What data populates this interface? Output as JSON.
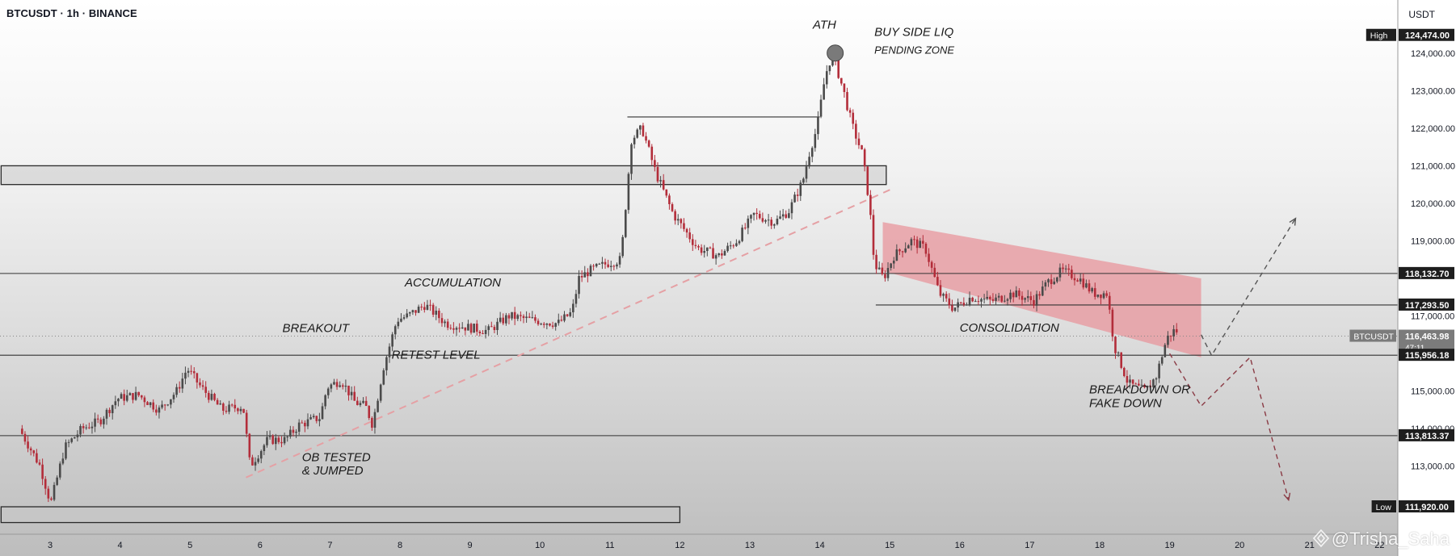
{
  "header": {
    "symbol": "BTCUSDT · 1h · BINANCE",
    "currency": "USDT"
  },
  "watermark": "@Trisha_Saha",
  "colors": {
    "up": "#4a4a4a",
    "down": "#b32d3a",
    "zone": "#e8969c",
    "level_line": "#333333",
    "trend_dash": "#e5a0a4",
    "proj_up": "#555555",
    "proj_down": "#8a3a44"
  },
  "chart_data": {
    "type": "candlestick",
    "title": "BTCUSDT · 1h · BINANCE",
    "ylim": [
      111400,
      125400
    ],
    "y_ticks": [
      "124,000.00",
      "123,000.00",
      "122,000.00",
      "121,000.00",
      "120,000.00",
      "119,000.00",
      "117,000.00",
      "115,000.00",
      "114,000.00",
      "113,000.00"
    ],
    "x_ticks": [
      "3",
      "4",
      "5",
      "6",
      "7",
      "8",
      "9",
      "10",
      "11",
      "12",
      "13",
      "14",
      "15",
      "16",
      "17",
      "18",
      "19",
      "20",
      "21",
      "22"
    ],
    "price_labels": [
      {
        "tag": "High",
        "value": "124,474.00"
      },
      {
        "tag": "",
        "value": "118,132.70"
      },
      {
        "tag": "",
        "value": "117,293.50"
      },
      {
        "tag": "BTCUSDT",
        "value": "116,463.98",
        "sub": "47:11"
      },
      {
        "tag": "",
        "value": "115,956.18"
      },
      {
        "tag": "",
        "value": "113,813.37"
      },
      {
        "tag": "Low",
        "value": "111,920.00"
      }
    ],
    "levels": [
      118132.7,
      117293.5,
      115956.18,
      113813.37
    ],
    "price_path": [
      [
        2.6,
        114000
      ],
      [
        2.9,
        113000
      ],
      [
        3.05,
        112000
      ],
      [
        3.25,
        113500
      ],
      [
        3.5,
        114000
      ],
      [
        3.75,
        114200
      ],
      [
        4.0,
        114800
      ],
      [
        4.3,
        114900
      ],
      [
        4.6,
        114500
      ],
      [
        4.85,
        115000
      ],
      [
        5.0,
        115600
      ],
      [
        5.2,
        115100
      ],
      [
        5.5,
        114500
      ],
      [
        5.8,
        114600
      ],
      [
        5.9,
        113000
      ],
      [
        6.15,
        113700
      ],
      [
        6.4,
        113700
      ],
      [
        6.6,
        114100
      ],
      [
        6.9,
        114300
      ],
      [
        7.0,
        115100
      ],
      [
        7.2,
        115300
      ],
      [
        7.4,
        114700
      ],
      [
        7.55,
        114600
      ],
      [
        7.65,
        114100
      ],
      [
        7.8,
        115600
      ],
      [
        8.0,
        116900
      ],
      [
        8.15,
        117000
      ],
      [
        8.4,
        117300
      ],
      [
        8.7,
        116800
      ],
      [
        9.0,
        116700
      ],
      [
        9.3,
        116600
      ],
      [
        9.6,
        117000
      ],
      [
        9.9,
        116900
      ],
      [
        10.3,
        116800
      ],
      [
        10.5,
        117100
      ],
      [
        10.6,
        118000
      ],
      [
        10.75,
        118200
      ],
      [
        11.0,
        118400
      ],
      [
        11.2,
        118500
      ],
      [
        11.35,
        121700
      ],
      [
        11.5,
        122000
      ],
      [
        11.7,
        120800
      ],
      [
        11.95,
        119700
      ],
      [
        12.3,
        118800
      ],
      [
        12.6,
        118600
      ],
      [
        12.85,
        119000
      ],
      [
        13.1,
        119700
      ],
      [
        13.4,
        119500
      ],
      [
        13.6,
        119800
      ],
      [
        13.8,
        120600
      ],
      [
        13.9,
        121400
      ],
      [
        14.0,
        122000
      ],
      [
        14.12,
        123400
      ],
      [
        14.22,
        124000
      ],
      [
        14.38,
        123000
      ],
      [
        14.5,
        122100
      ],
      [
        14.65,
        121300
      ],
      [
        14.75,
        120000
      ],
      [
        14.82,
        118400
      ],
      [
        14.95,
        118000
      ],
      [
        15.1,
        118600
      ],
      [
        15.35,
        119000
      ],
      [
        15.55,
        118800
      ],
      [
        15.75,
        117600
      ],
      [
        15.95,
        117200
      ],
      [
        16.2,
        117500
      ],
      [
        16.5,
        117400
      ],
      [
        16.8,
        117600
      ],
      [
        17.1,
        117400
      ],
      [
        17.3,
        117900
      ],
      [
        17.5,
        118200
      ],
      [
        17.75,
        118000
      ],
      [
        17.95,
        117600
      ],
      [
        18.15,
        117600
      ],
      [
        18.25,
        116200
      ],
      [
        18.45,
        115200
      ],
      [
        18.7,
        115000
      ],
      [
        18.85,
        115400
      ],
      [
        19.0,
        116400
      ],
      [
        19.1,
        116600
      ]
    ],
    "zones": [
      {
        "type": "resistance_box",
        "x_from": 2.3,
        "x_to": 14.95,
        "y_from": 120500,
        "y_to": 121000
      },
      {
        "type": "demand_box",
        "x_from": 2.3,
        "x_to": 12.0,
        "y_from": 111500,
        "y_to": 111920
      },
      {
        "type": "descending_channel",
        "x_from": 14.9,
        "x_to": 19.45,
        "top": [
          119500,
          118000
        ],
        "bottom": [
          118200,
          115900
        ]
      }
    ],
    "lines": [
      {
        "type": "swing_high",
        "x_from": 11.25,
        "x_to": 14.0,
        "y": 122300
      },
      {
        "type": "trendline_dashed",
        "from": [
          5.8,
          112700
        ],
        "to": [
          15.05,
          120400
        ]
      }
    ],
    "projections": [
      {
        "name": "bullish",
        "points": [
          [
            19.45,
            116500
          ],
          [
            19.6,
            115950
          ],
          [
            20.8,
            119600
          ]
        ]
      },
      {
        "name": "bearish",
        "points": [
          [
            19.0,
            116000
          ],
          [
            19.45,
            114600
          ],
          [
            20.15,
            115900
          ],
          [
            20.7,
            112100
          ]
        ]
      }
    ],
    "annotations": [
      {
        "text": "ATH",
        "x": 13.9,
        "y": 124650
      },
      {
        "text": "BUY SIDE LIQ",
        "x": 14.78,
        "y": 124460
      },
      {
        "text": "PENDING ZONE",
        "x": 14.78,
        "y": 123990
      },
      {
        "text": "ACCUMULATION",
        "x": 8.07,
        "y": 117790
      },
      {
        "text": "BREAKOUT",
        "x": 6.32,
        "y": 116570
      },
      {
        "text": "RETEST LEVEL",
        "x": 7.88,
        "y": 115860
      },
      {
        "text": "CONSOLIDATION",
        "x": 16.0,
        "y": 116580
      },
      {
        "text": "BREAKDOWN OR",
        "x": 17.85,
        "y": 114940
      },
      {
        "text": "FAKE DOWN",
        "x": 17.85,
        "y": 114570
      },
      {
        "text": "OB TESTED",
        "x": 6.6,
        "y": 113130
      },
      {
        "text": "& JUMPED",
        "x": 6.6,
        "y": 112780
      }
    ]
  }
}
